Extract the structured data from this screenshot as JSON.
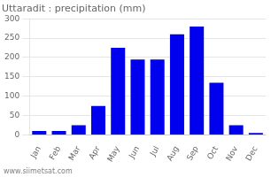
{
  "chart_data": {
    "type": "bar",
    "title": "Uttaradit : precipitation (mm)",
    "categories": [
      "Jan",
      "Feb",
      "Mar",
      "Apr",
      "May",
      "Jun",
      "Jul",
      "Aug",
      "Sep",
      "Oct",
      "Nov",
      "Dec"
    ],
    "values": [
      10,
      10,
      25,
      75,
      225,
      195,
      195,
      260,
      280,
      135,
      25,
      5
    ],
    "color": "#0000ee",
    "ylim": [
      0,
      300
    ],
    "yticks": [
      0,
      50,
      100,
      150,
      200,
      250,
      300
    ],
    "grid": true,
    "annotations": [
      "www.siimetsat.com"
    ]
  }
}
